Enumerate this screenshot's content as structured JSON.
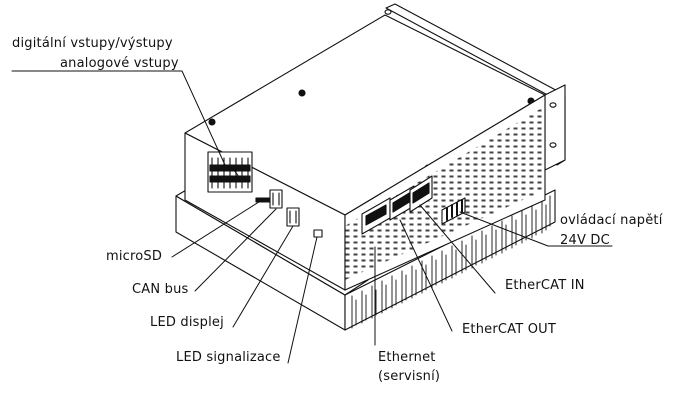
{
  "labels": {
    "digital_io": "digitální vstupy/výstupy",
    "analog_in": "analogové vstupy",
    "microsd": "microSD",
    "can_bus": "CAN bus",
    "led_display": "LED displej",
    "led_signal": "LED signalizace",
    "ethernet_line1": "Ethernet",
    "ethernet_line2": "(servisní)",
    "ethercat_out": "EtherCAT OUT",
    "ethercat_in": "EtherCAT IN",
    "supply_line1": "ovládací napětí",
    "supply_line2": "24V DC"
  }
}
